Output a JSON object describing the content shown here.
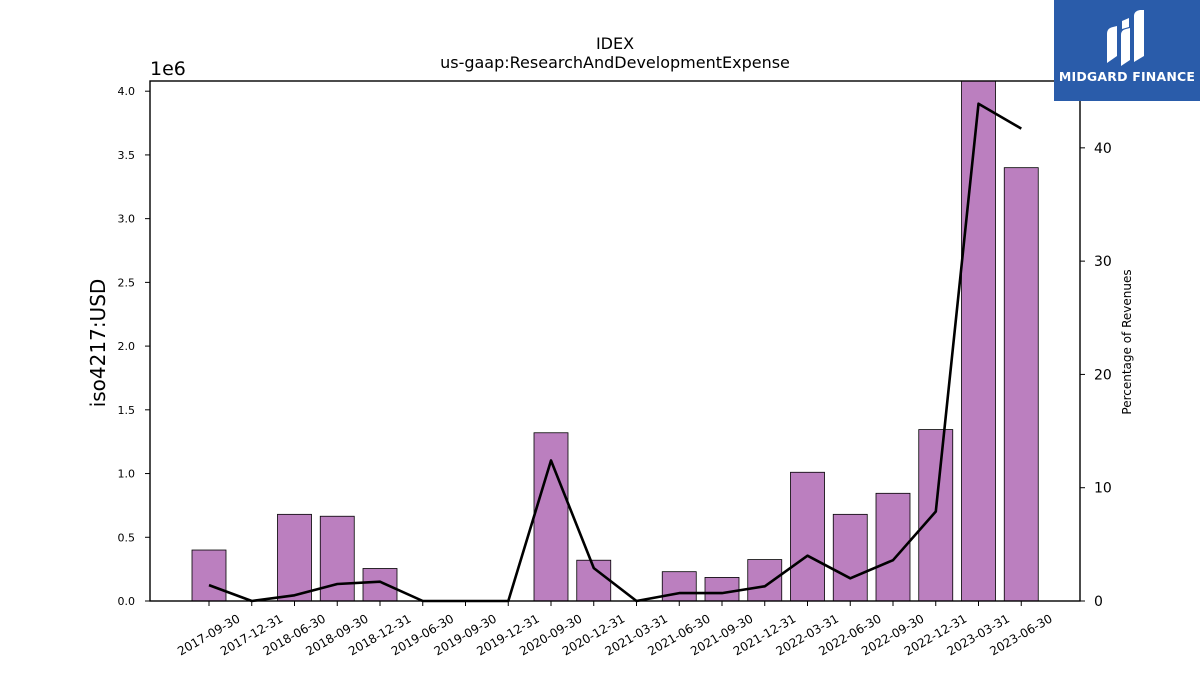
{
  "logo": {
    "text": "MIDGARD FINANCE",
    "color": "#2a5caa"
  },
  "chart_data": {
    "type": "bar",
    "title": "IDEX",
    "subtitle": "us-gaap:ResearchAndDevelopmentExpense",
    "ylabel": "iso4217:USD",
    "y_multiplier": "1e6",
    "y2label": "Percentage of Revenues",
    "ylim": [
      0,
      4.08
    ],
    "y2lim": [
      0,
      45.9
    ],
    "yticks": [
      "0.0",
      "0.5",
      "1.0",
      "1.5",
      "2.0",
      "2.5",
      "3.0",
      "3.5",
      "4.0"
    ],
    "y2ticks": [
      "0",
      "10",
      "20",
      "30",
      "40"
    ],
    "bar_color": "#bb7fbf",
    "line_color": "#000000",
    "categories": [
      "2017-09-30",
      "2017-12-31",
      "2018-06-30",
      "2018-09-30",
      "2018-12-31",
      "2019-06-30",
      "2019-09-30",
      "2019-12-31",
      "2020-09-30",
      "2020-12-31",
      "2021-03-31",
      "2021-06-30",
      "2021-09-30",
      "2021-12-31",
      "2022-03-31",
      "2022-06-30",
      "2022-09-30",
      "2022-12-31",
      "2023-03-31",
      "2023-06-30"
    ],
    "series": [
      {
        "name": "",
        "kind": "bar",
        "axis": "left",
        "values": [
          0.4,
          0,
          0.68,
          0.665,
          0.255,
          0,
          0,
          0,
          1.32,
          0.32,
          0,
          0.23,
          0.185,
          0.325,
          1.01,
          0.68,
          0.845,
          1.345,
          4.08,
          3.4
        ]
      },
      {
        "name": "",
        "kind": "line",
        "axis": "right",
        "values": [
          1.4,
          0.0,
          0.5,
          1.5,
          1.7,
          0.0,
          0.0,
          0.0,
          12.4,
          2.9,
          0.0,
          0.7,
          0.7,
          1.3,
          4.0,
          2.0,
          3.6,
          7.9,
          43.9,
          41.7
        ]
      }
    ]
  }
}
